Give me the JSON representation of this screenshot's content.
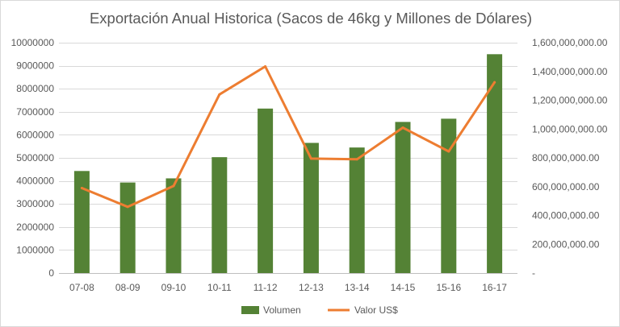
{
  "chart_data": {
    "type": "bar",
    "title": "Exportación Anual Historica (Sacos de 46kg y Millones de Dólares)",
    "categories": [
      "07-08",
      "08-09",
      "09-10",
      "10-11",
      "11-12",
      "12-13",
      "13-14",
      "14-15",
      "15-16",
      "16-17"
    ],
    "series": [
      {
        "name": "Volumen",
        "type": "bar",
        "axis": "left",
        "color": "#548235",
        "values": [
          4430000,
          3930000,
          4110000,
          5030000,
          7140000,
          5650000,
          5450000,
          6560000,
          6700000,
          9500000
        ]
      },
      {
        "name": "Valor US$",
        "type": "line",
        "axis": "right",
        "color": "#ED7D31",
        "values": [
          590000000,
          460000000,
          605000000,
          1240000000,
          1435000000,
          795000000,
          790000000,
          1010000000,
          845000000,
          1325000000
        ]
      }
    ],
    "y_left": {
      "ylim": [
        0,
        10000000
      ],
      "ticks": [
        "0",
        "1000000",
        "2000000",
        "3000000",
        "4000000",
        "5000000",
        "6000000",
        "7000000",
        "8000000",
        "9000000",
        "10000000"
      ]
    },
    "y_right": {
      "ylim": [
        0,
        1600000000
      ],
      "ticks": [
        "-",
        "200,000,000.00",
        "400,000,000.00",
        "600,000,000.00",
        "800,000,000.00",
        "1,000,000,000.00",
        "1,200,000,000.00",
        "1,400,000,000.00",
        "1,600,000,000.00"
      ]
    },
    "grid": true,
    "legend_position": "bottom"
  }
}
